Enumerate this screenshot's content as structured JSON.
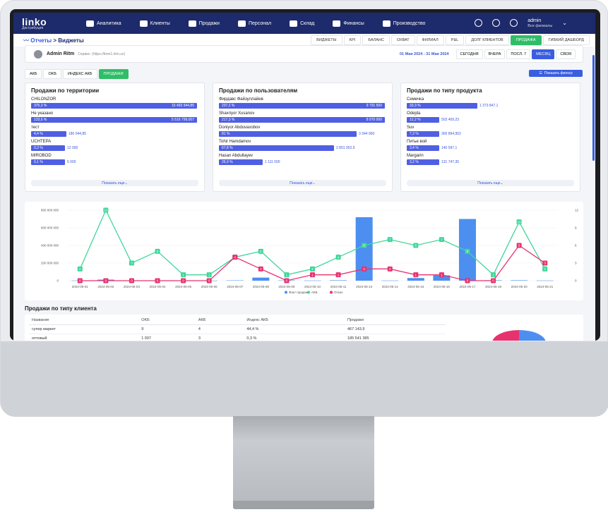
{
  "nav": {
    "logo": "linko",
    "logo_sub": "Дистрибуция",
    "items": [
      {
        "label": "Аналитика",
        "icon": "chart-icon"
      },
      {
        "label": "Клиенты",
        "icon": "users-icon"
      },
      {
        "label": "Продажи",
        "icon": "sales-icon"
      },
      {
        "label": "Персонал",
        "icon": "staff-icon"
      },
      {
        "label": "Склад",
        "icon": "warehouse-icon"
      },
      {
        "label": "Финансы",
        "icon": "wallet-icon"
      },
      {
        "label": "Производство",
        "icon": "factory-icon"
      }
    ],
    "user": "admin",
    "user_sub": "Все филиалы"
  },
  "breadcrumb": {
    "part1": "Отчеты",
    "sep": " > ",
    "part2": "Виджеты"
  },
  "top_tabs": [
    "ВИДЖЕТЫ",
    "KPI",
    "БАЛАНС",
    "ОХВАТ",
    "ФИЛИАЛ",
    "P&L",
    "ДОЛГ КЛИЕНТОВ",
    "ПРОДАЖА",
    "ГИБКИЙ ДАШБОРД"
  ],
  "top_tab_active": "ПРОДАЖА",
  "user_card": {
    "name": "Admin Ritm",
    "service": "Сервис: (https://time1.ritm.uz)",
    "range": "01 Мая 2024 - 31 Мая 2024",
    "periods": [
      "СЕГОДНЯ",
      "ВЧЕРА",
      "ПОСЛ. 7",
      "МЕСЯЦ",
      "СВОЯ"
    ],
    "period_active": "МЕСЯЦ"
  },
  "sub_tabs": [
    "АКБ",
    "OKБ",
    "ИНДЕКС АКБ",
    "ПРОДАЖИ"
  ],
  "sub_tab_active": "ПРОДАЖИ",
  "filter_button": "Показать фильтр",
  "cards": [
    {
      "title": "Продажи по территории",
      "rows": [
        {
          "name": "CHILONZOR",
          "pct": "375,3 %",
          "val": "15 493 944,85",
          "inside": true,
          "w": 235
        },
        {
          "name": "Не указано",
          "pct": "133,6 %",
          "val": "5 516 799,007",
          "inside": true,
          "w": 235
        },
        {
          "name": "тест",
          "pct": "4,4 %",
          "val": "180 044,85",
          "inside": false,
          "w": 50
        },
        {
          "name": "UCHTEPA",
          "pct": "0,3 %",
          "val": "12 000",
          "inside": false,
          "w": 48
        },
        {
          "name": "MIROBOD",
          "pct": "0,1 %",
          "val": "5 000",
          "inside": false,
          "w": 48
        }
      ],
      "more": "Показать еще"
    },
    {
      "title": "Продажи по пользователям",
      "rows": [
        {
          "name": "Фирдавс Файзуллайев",
          "pct": "237,2 %",
          "val": "9 791 500",
          "inside": true,
          "w": 235
        },
        {
          "name": "Shaxriyor Xusanov",
          "pct": "217,3 %",
          "val": "8 970 000",
          "inside": true,
          "w": 235
        },
        {
          "name": "Doniyor Abduvaxobov",
          "pct": "81 %",
          "val": "3 344 000",
          "inside": false,
          "w": 195
        },
        {
          "name": "Tohir Hamdamov",
          "pct": "67,8 %",
          "val": "2 801 002,9",
          "inside": false,
          "w": 163
        },
        {
          "name": "Hasan Abdullayev",
          "pct": "26,9 %",
          "val": "1 111 000",
          "inside": false,
          "w": 62
        }
      ],
      "more": "Показать еще"
    },
    {
      "title": "Продажи по типу продукта",
      "rows": [
        {
          "name": "Семечка",
          "pct": "33,3 %",
          "val": "1 373 847,1",
          "inside": false,
          "w": 100
        },
        {
          "name": "Odejda",
          "pct": "12,2 %",
          "val": "503 409,23",
          "inside": false,
          "w": 46
        },
        {
          "name": "Suv",
          "pct": "7,3 %",
          "val": "300 894,952",
          "inside": false,
          "w": 46
        },
        {
          "name": "Питье вой",
          "pct": "3,4 %",
          "val": "140 597,1",
          "inside": false,
          "w": 46
        },
        {
          "name": "Margarin",
          "pct": "3,2 %",
          "val": "131 747,35",
          "inside": false,
          "w": 46
        }
      ],
      "more": "Показать еще"
    }
  ],
  "chart_data": {
    "type": "bar",
    "categories": [
      "2024-05-01",
      "2024-05-02",
      "2024-05-03",
      "2024-05-04",
      "2024-05-05",
      "2024-05-06",
      "2024-05-07",
      "2024-05-08",
      "2024-05-09",
      "2024-05-10",
      "2024-05-11",
      "2024-05-13",
      "2024-05-14",
      "2024-05-15",
      "2024-05-16",
      "2024-05-17",
      "2024-05-18",
      "2024-05-20",
      "2024-05-21"
    ],
    "y_left": {
      "ticks": [
        "0",
        "200 000 000",
        "400 000 000",
        "600 000 000",
        "800 000 000"
      ],
      "range": [
        0,
        800000000
      ]
    },
    "y_right": {
      "ticks": [
        "0",
        "3",
        "6",
        "9",
        "12"
      ],
      "range": [
        0,
        12
      ]
    },
    "series": [
      {
        "name": "Факт продаж",
        "type": "bar",
        "color": "#4c8ff0",
        "values": [
          2000000,
          12000000,
          4000000,
          3000000,
          1000000,
          1000000,
          4000000,
          35000000,
          3000000,
          2000000,
          5000000,
          720000000,
          2000000,
          30000000,
          60000000,
          700000000,
          5000000,
          5000000,
          2000000
        ]
      },
      {
        "name": "АКБ",
        "type": "line",
        "color": "#3fd69a",
        "values": [
          2,
          12,
          3,
          5,
          1,
          1,
          4,
          5,
          1,
          2,
          4,
          6,
          7,
          6,
          7,
          5,
          1,
          10,
          2
        ]
      },
      {
        "name": "Отказ",
        "type": "line",
        "color": "#e8326f",
        "values": [
          0,
          0,
          0,
          0,
          0,
          0,
          4,
          2,
          0,
          1,
          1,
          2,
          2,
          1,
          1,
          0,
          0,
          6,
          3
        ]
      }
    ]
  },
  "section_title": "Продажи по типу клиента",
  "table": {
    "headers": [
      "Название",
      "OKБ",
      "АКБ",
      "Индекс АКБ",
      "Продажи"
    ],
    "rows": [
      [
        "супер маркет",
        "9",
        "4",
        "44,4 %",
        "467 143,9"
      ],
      [
        "оптовый",
        "1 007",
        "3",
        "0,3 %",
        "185 541 385"
      ]
    ]
  }
}
